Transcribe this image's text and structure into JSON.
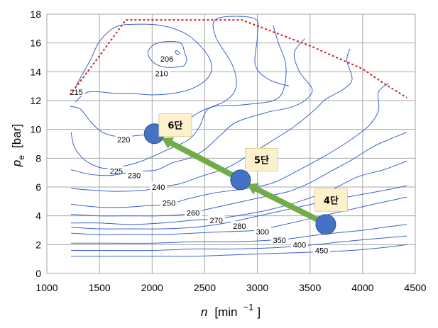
{
  "chart_data": {
    "type": "line",
    "xlabel": {
      "var": "n",
      "unit_open": "[min",
      "exp": "−1",
      "unit_close": "]"
    },
    "ylabel": {
      "var": "p",
      "sub": "e",
      "unit": "[bar]"
    },
    "xlim": [
      1000,
      4500
    ],
    "ylim": [
      0,
      18
    ],
    "x_ticks": [
      "1000",
      "1500",
      "2000",
      "2500",
      "3000",
      "3500",
      "4000",
      "4500"
    ],
    "y_ticks": [
      "0",
      "2",
      "4",
      "6",
      "8",
      "10",
      "12",
      "14",
      "16",
      "18"
    ],
    "grid": true,
    "colors": {
      "contour": "#3a62d0",
      "full_load": "#d21e1e",
      "gear_point": "#4472c4",
      "arrow": "#70ad47",
      "grid": "#a6a6a6",
      "gear_box": "#fdf1cc"
    },
    "full_load_curve": [
      [
        1220,
        12.4
      ],
      [
        1500,
        15.1
      ],
      [
        1750,
        17.6
      ],
      [
        2850,
        17.6
      ],
      [
        3500,
        15.8
      ],
      [
        4000,
        14.2
      ],
      [
        4200,
        13.2
      ],
      [
        4420,
        12.2
      ]
    ],
    "contours": [
      {
        "label": "206",
        "label_at": [
          2140,
          14.9
        ],
        "points": [
          [
            2230,
            15.5
          ],
          [
            2260,
            15.3
          ],
          [
            2240,
            15.2
          ],
          [
            2220,
            15.35
          ],
          [
            2230,
            15.5
          ]
        ]
      },
      {
        "label": "210",
        "label_at": [
          2090,
          13.9
        ],
        "points": [
          [
            2300,
            14.4
          ],
          [
            2150,
            14.3
          ],
          [
            2020,
            14.6
          ],
          [
            1960,
            15.3
          ],
          [
            2020,
            15.9
          ],
          [
            2140,
            16.1
          ],
          [
            2270,
            16.0
          ],
          [
            2310,
            15.3
          ],
          [
            2330,
            14.8
          ],
          [
            2300,
            14.4
          ]
        ]
      },
      {
        "label": "215",
        "label_at": [
          1280,
          12.6
        ],
        "points": [
          [
            1270,
            11.9
          ],
          [
            1400,
            12.6
          ],
          [
            1650,
            12.5
          ],
          [
            1800,
            12.5
          ],
          [
            2000,
            12.4
          ],
          [
            2200,
            12.5
          ],
          [
            2400,
            12.9
          ],
          [
            2550,
            13.8
          ],
          [
            2540,
            15.0
          ],
          [
            2350,
            16.5
          ],
          [
            2100,
            17.2
          ],
          [
            1840,
            17.3
          ],
          [
            1650,
            17.1
          ],
          [
            1500,
            16.1
          ],
          [
            1420,
            14.9
          ],
          [
            1350,
            14.0
          ],
          [
            1270,
            12.9
          ]
        ]
      },
      {
        "label": "220",
        "label_at": [
          1730,
          9.3
        ],
        "points": [
          [
            1220,
            11.6
          ],
          [
            1320,
            11.4
          ],
          [
            1420,
            10.5
          ],
          [
            1530,
            9.8
          ],
          [
            1680,
            9.5
          ],
          [
            1900,
            9.6
          ],
          [
            2150,
            9.8
          ],
          [
            2450,
            11.2
          ],
          [
            2700,
            12.0
          ],
          [
            2800,
            13.0
          ],
          [
            2760,
            14.5
          ],
          [
            2600,
            16.5
          ],
          [
            2620,
            17.7
          ],
          [
            2970,
            17.7
          ],
          [
            3000,
            16.5
          ],
          [
            2980,
            14.5
          ],
          [
            3100,
            13.5
          ],
          [
            3300,
            13.0
          ]
        ]
      },
      {
        "label": "225",
        "label_at": [
          1660,
          7.1
        ],
        "points": [
          [
            1230,
            9.8
          ],
          [
            1260,
            8.8
          ],
          [
            1340,
            8.0
          ],
          [
            1420,
            7.6
          ],
          [
            1540,
            7.3
          ],
          [
            1700,
            7.4
          ],
          [
            1900,
            7.8
          ],
          [
            2150,
            8.6
          ],
          [
            2350,
            9.3
          ],
          [
            2450,
            10.2
          ],
          [
            2550,
            11.5
          ],
          [
            2850,
            11.7
          ],
          [
            3150,
            12.0
          ],
          [
            3250,
            12.8
          ],
          [
            3270,
            14.5
          ],
          [
            3200,
            16.0
          ],
          [
            3150,
            17.2
          ]
        ]
      },
      {
        "label": "230",
        "label_at": [
          1830,
          6.8
        ],
        "points": [
          [
            1230,
            7.2
          ],
          [
            1400,
            6.9
          ],
          [
            1600,
            6.8
          ],
          [
            1760,
            7.0
          ],
          [
            1900,
            7.1
          ],
          [
            2050,
            7.2
          ],
          [
            2200,
            7.7
          ],
          [
            2350,
            8.0
          ],
          [
            2500,
            8.6
          ],
          [
            2650,
            9.6
          ],
          [
            2800,
            10.5
          ],
          [
            3100,
            11.2
          ],
          [
            3300,
            11.5
          ],
          [
            3450,
            12.0
          ],
          [
            3520,
            12.8
          ],
          [
            3400,
            14.0
          ],
          [
            3350,
            15.3
          ],
          [
            3450,
            16.3
          ]
        ]
      },
      {
        "label": "240",
        "label_at": [
          2060,
          6.0
        ],
        "points": [
          [
            1230,
            5.9
          ],
          [
            1400,
            5.8
          ],
          [
            1650,
            5.7
          ],
          [
            1950,
            5.8
          ],
          [
            2050,
            6.0
          ],
          [
            2250,
            6.2
          ],
          [
            2450,
            6.7
          ],
          [
            2700,
            7.3
          ],
          [
            2850,
            7.9
          ],
          [
            3050,
            8.8
          ],
          [
            3350,
            10.2
          ],
          [
            3550,
            11.4
          ],
          [
            3650,
            12.1
          ],
          [
            3820,
            12.8
          ],
          [
            3900,
            13.5
          ],
          [
            3850,
            14.8
          ],
          [
            3880,
            15.6
          ]
        ]
      },
      {
        "label": "250",
        "label_at": [
          2160,
          4.9
        ],
        "points": [
          [
            1230,
            4.8
          ],
          [
            1500,
            4.6
          ],
          [
            1750,
            4.6
          ],
          [
            1950,
            4.7
          ],
          [
            2150,
            4.8
          ],
          [
            2350,
            5.2
          ],
          [
            2600,
            5.6
          ],
          [
            2900,
            5.9
          ],
          [
            3150,
            6.3
          ],
          [
            3400,
            7.2
          ],
          [
            3650,
            8.2
          ],
          [
            3850,
            9.1
          ],
          [
            4050,
            10.2
          ],
          [
            4150,
            11.3
          ],
          [
            4150,
            12.6
          ],
          [
            4250,
            13.2
          ]
        ]
      },
      {
        "label": "260",
        "label_at": [
          2390,
          4.2
        ],
        "points": [
          [
            1230,
            4.1
          ],
          [
            1500,
            4.0
          ],
          [
            1800,
            4.0
          ],
          [
            2050,
            4.0
          ],
          [
            2300,
            4.1
          ],
          [
            2550,
            4.5
          ],
          [
            2800,
            4.9
          ],
          [
            3050,
            5.3
          ],
          [
            3300,
            5.7
          ],
          [
            3500,
            6.3
          ],
          [
            3700,
            7.1
          ],
          [
            3900,
            7.9
          ],
          [
            4100,
            8.8
          ],
          [
            4250,
            9.3
          ],
          [
            4420,
            9.8
          ]
        ]
      },
      {
        "label": "270",
        "label_at": [
          2610,
          3.7
        ],
        "points": [
          [
            1230,
            3.5
          ],
          [
            1500,
            3.5
          ],
          [
            1800,
            3.4
          ],
          [
            2100,
            3.5
          ],
          [
            2400,
            3.7
          ],
          [
            2600,
            3.8
          ],
          [
            2800,
            4.0
          ],
          [
            3100,
            4.4
          ],
          [
            3400,
            5.0
          ],
          [
            3700,
            5.8
          ],
          [
            3950,
            6.7
          ],
          [
            4200,
            7.2
          ],
          [
            4420,
            7.8
          ]
        ]
      },
      {
        "label": "280",
        "label_at": [
          2830,
          3.3
        ],
        "points": [
          [
            1230,
            3.2
          ],
          [
            1500,
            3.1
          ],
          [
            1800,
            3.1
          ],
          [
            2100,
            3.1
          ],
          [
            2400,
            3.2
          ],
          [
            2700,
            3.5
          ],
          [
            2950,
            3.9
          ],
          [
            3200,
            4.3
          ],
          [
            3450,
            4.7
          ],
          [
            3700,
            5.1
          ],
          [
            4000,
            5.5
          ],
          [
            4300,
            5.9
          ],
          [
            4420,
            6.1
          ]
        ]
      },
      {
        "label": "300",
        "label_at": [
          3050,
          2.9
        ],
        "points": [
          [
            1230,
            2.8
          ],
          [
            1500,
            2.7
          ],
          [
            1800,
            2.7
          ],
          [
            2100,
            2.7
          ],
          [
            2400,
            2.8
          ],
          [
            2700,
            2.9
          ],
          [
            3000,
            3.0
          ],
          [
            3200,
            3.3
          ],
          [
            3500,
            3.8
          ],
          [
            3800,
            4.3
          ],
          [
            4100,
            4.8
          ],
          [
            4420,
            5.3
          ]
        ]
      },
      {
        "label": "350",
        "label_at": [
          3210,
          2.3
        ],
        "points": [
          [
            1230,
            2.1
          ],
          [
            1600,
            2.1
          ],
          [
            2000,
            2.1
          ],
          [
            2400,
            2.2
          ],
          [
            2800,
            2.2
          ],
          [
            3100,
            2.3
          ],
          [
            3300,
            2.4
          ],
          [
            3600,
            2.7
          ],
          [
            4000,
            3.0
          ],
          [
            4200,
            3.2
          ],
          [
            4420,
            3.4
          ]
        ]
      },
      {
        "label": "400",
        "label_at": [
          3400,
          2.0
        ],
        "points": [
          [
            1230,
            1.6
          ],
          [
            1600,
            1.6
          ],
          [
            2000,
            1.6
          ],
          [
            2400,
            1.7
          ],
          [
            2800,
            1.7
          ],
          [
            3200,
            1.8
          ],
          [
            3550,
            2.0
          ],
          [
            3800,
            2.2
          ],
          [
            4100,
            2.4
          ],
          [
            4420,
            2.6
          ]
        ]
      },
      {
        "label": "450",
        "label_at": [
          3610,
          1.6
        ],
        "points": [
          [
            1230,
            1.2
          ],
          [
            1600,
            1.2
          ],
          [
            2000,
            1.2
          ],
          [
            2400,
            1.2
          ],
          [
            2800,
            1.3
          ],
          [
            3200,
            1.4
          ],
          [
            3600,
            1.5
          ],
          [
            3900,
            1.6
          ],
          [
            4200,
            1.8
          ],
          [
            4420,
            2.0
          ]
        ]
      }
    ],
    "operating_points": [
      {
        "label": "6단",
        "n": 2020,
        "pe": 9.7,
        "label_at": [
          2220,
          10.3
        ]
      },
      {
        "label": "5단",
        "n": 2840,
        "pe": 6.5,
        "label_at": [
          3040,
          7.9
        ]
      },
      {
        "label": "4단",
        "n": 3650,
        "pe": 3.4,
        "label_at": [
          3700,
          5.1
        ]
      }
    ],
    "arrows": [
      {
        "from": [
          3580,
          3.7
        ],
        "to": [
          2900,
          6.2
        ]
      },
      {
        "from": [
          2770,
          6.8
        ],
        "to": [
          2090,
          9.4
        ]
      }
    ]
  }
}
